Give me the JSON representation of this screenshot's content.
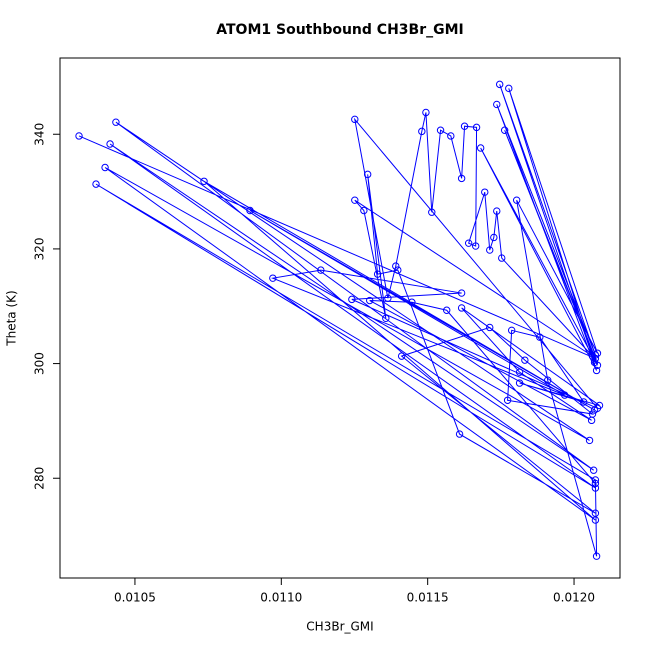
{
  "chart_data": {
    "type": "line",
    "title": "ATOM1 Southbound CH3Br_GMI",
    "x_label": "CH3Br_GMI",
    "y_label": "Theta (K)",
    "x": [
      0.010309,
      0.012073,
      0.011763,
      0.01208,
      0.011681,
      0.012077,
      0.011736,
      0.012073,
      0.011746,
      0.01207,
      0.011777,
      0.01208,
      0.011804,
      0.01191,
      0.012077,
      0.012073,
      0.010367,
      0.012073,
      0.010415,
      0.012067,
      0.010435,
      0.012053,
      0.010398,
      0.012073,
      0.010736,
      0.01207,
      0.010893,
      0.011968,
      0.010971,
      0.011135,
      0.011616,
      0.011241,
      0.01208,
      0.011251,
      0.011364,
      0.011391,
      0.01148,
      0.011494,
      0.011514,
      0.011544,
      0.011579,
      0.011616,
      0.011626,
      0.011667,
      0.011664,
      0.01164,
      0.011695,
      0.011712,
      0.011726,
      0.011736,
      0.011753,
      0.012063,
      0.011251,
      0.011282,
      0.011357,
      0.011295,
      0.011329,
      0.011398,
      0.011609,
      0.012073,
      0.011411,
      0.011712,
      0.011832,
      0.012063,
      0.011773,
      0.011787,
      0.011883,
      0.012033,
      0.011814,
      0.012087,
      0.011616,
      0.011814,
      0.01206,
      0.011302,
      0.011446,
      0.011565,
      0.012073
    ],
    "series": [
      {
        "color": "#0000ff",
        "values": [
          339.7,
          300.9,
          340.7,
          299.7,
          337.6,
          298.8,
          345.2,
          301.5,
          348.7,
          300.2,
          348.0,
          301.8,
          328.5,
          297.1,
          266.4,
          279.7,
          331.3,
          278.3,
          338.3,
          281.4,
          342.1,
          286.6,
          334.2,
          272.7,
          331.8,
          291.9,
          326.7,
          294.5,
          314.9,
          316.3,
          312.3,
          311.2,
          292.2,
          342.6,
          311.4,
          317.0,
          340.5,
          343.8,
          326.4,
          340.7,
          339.7,
          332.3,
          341.4,
          341.2,
          320.5,
          321.0,
          329.9,
          319.8,
          322.0,
          326.6,
          318.4,
          301.3,
          328.5,
          326.7,
          307.9,
          333.0,
          315.6,
          316.3,
          287.7,
          273.9,
          301.3,
          306.3,
          300.6,
          291.2,
          293.6,
          305.8,
          304.6,
          293.3,
          296.6,
          292.7,
          309.7,
          298.5,
          290.1,
          311.0,
          310.7,
          309.3,
          279.1
        ]
      }
    ],
    "xlim": [
      0.010244,
      0.012157
    ],
    "ylim": [
      262.6,
      353.3
    ],
    "xticks": [
      0.0105,
      {
        "value": 0.011,
        "label": "0.0110"
      },
      0.0115,
      {
        "value": 0.012,
        "label": "0.0120"
      }
    ],
    "yticks": [
      280,
      300,
      320,
      340
    ]
  }
}
